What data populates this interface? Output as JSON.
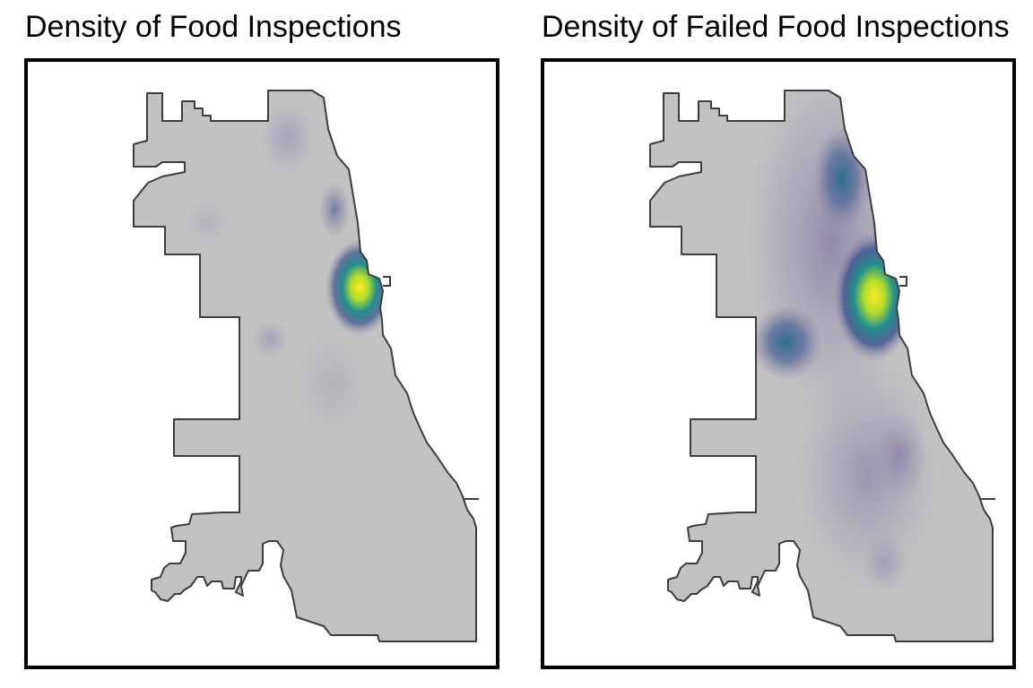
{
  "panels": [
    {
      "id": "left",
      "title": "Density of Food Inspections",
      "hotspots": [
        {
          "name": "downtown-hotspot",
          "level": 1.0
        },
        {
          "name": "north-side-cluster",
          "level": 0.3
        }
      ]
    },
    {
      "id": "right",
      "title": "Density of Failed Food Inspections",
      "hotspots": [
        {
          "name": "downtown-hotspot",
          "level": 1.0
        },
        {
          "name": "north-side-cluster",
          "level": 0.5
        },
        {
          "name": "west-side-cluster",
          "level": 0.45
        },
        {
          "name": "south-side-cluster",
          "level": 0.25
        }
      ]
    }
  ],
  "colors": {
    "land": "#c2c2c2",
    "boundary": "#3d3d3d",
    "frame": "#000000",
    "density_low": "#8d84a8",
    "density_mid": "#2e6e8e",
    "density_high": "#21908d",
    "density_peak": "#fde725"
  }
}
